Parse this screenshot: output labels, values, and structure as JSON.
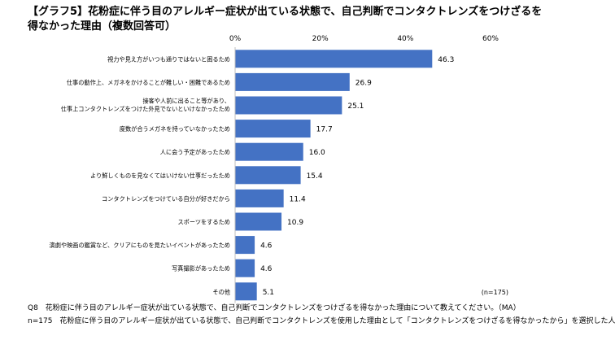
{
  "title": {
    "line1": "【グラフ5】花粉症に伴う目のアレルギー症状が出ている状態で、自己判断でコンタクトレンズをつけざるを",
    "line2": "得なかった理由（複数回答可）"
  },
  "chart_data": {
    "type": "bar",
    "orientation": "horizontal",
    "categories": [
      "視力や見え方がいつも通りではないと困るため",
      "仕事の動作上、メガネをかけることが難しい・困難であるため",
      "接客や人前に出ること等があり、|仕事上コンタクトレンズをつけた外見でないといけなかったため",
      "度数が合うメガネを持っていなかったため",
      "人に会う予定があったため",
      "より鮮しくものを見なくてはいけない仕事だったため",
      "コンタクトレンズをつけている自分が好きだから",
      "スポーツをするため",
      "演劇や映画の鑑賞など、クリアにものを見たいイベントがあったため",
      "写真撮影があったため",
      "その他"
    ],
    "values": [
      46.3,
      26.9,
      25.1,
      17.7,
      16.0,
      15.4,
      11.4,
      10.9,
      4.6,
      4.6,
      5.1
    ],
    "value_labels": [
      "46.3",
      "26.9",
      "25.1",
      "17.7",
      "16.0",
      "15.4",
      "11.4",
      "10.9",
      "4.6",
      "4.6",
      "5.1"
    ],
    "xlim": [
      0,
      60
    ],
    "ticks": [
      0,
      20,
      40,
      60
    ],
    "tick_labels": [
      "0%",
      "20%",
      "40%",
      "60%"
    ],
    "bar_color": "#4472c4",
    "grid": false,
    "sample_note": "(n=175)"
  },
  "footnotes": {
    "question": "Q8　花粉症に伴う目のアレルギー症状が出ている状態で、自己判断でコンタクトレンズをつけざるを得なかった理由について教えてください。（MA）",
    "sample": "n=175　花粉症に伴う目のアレルギー症状が出ている状態で、自己判断でコンタクトレンズを使用した理由として「コンタクトレンズをつけざるを得なかったから」を選択した人"
  }
}
